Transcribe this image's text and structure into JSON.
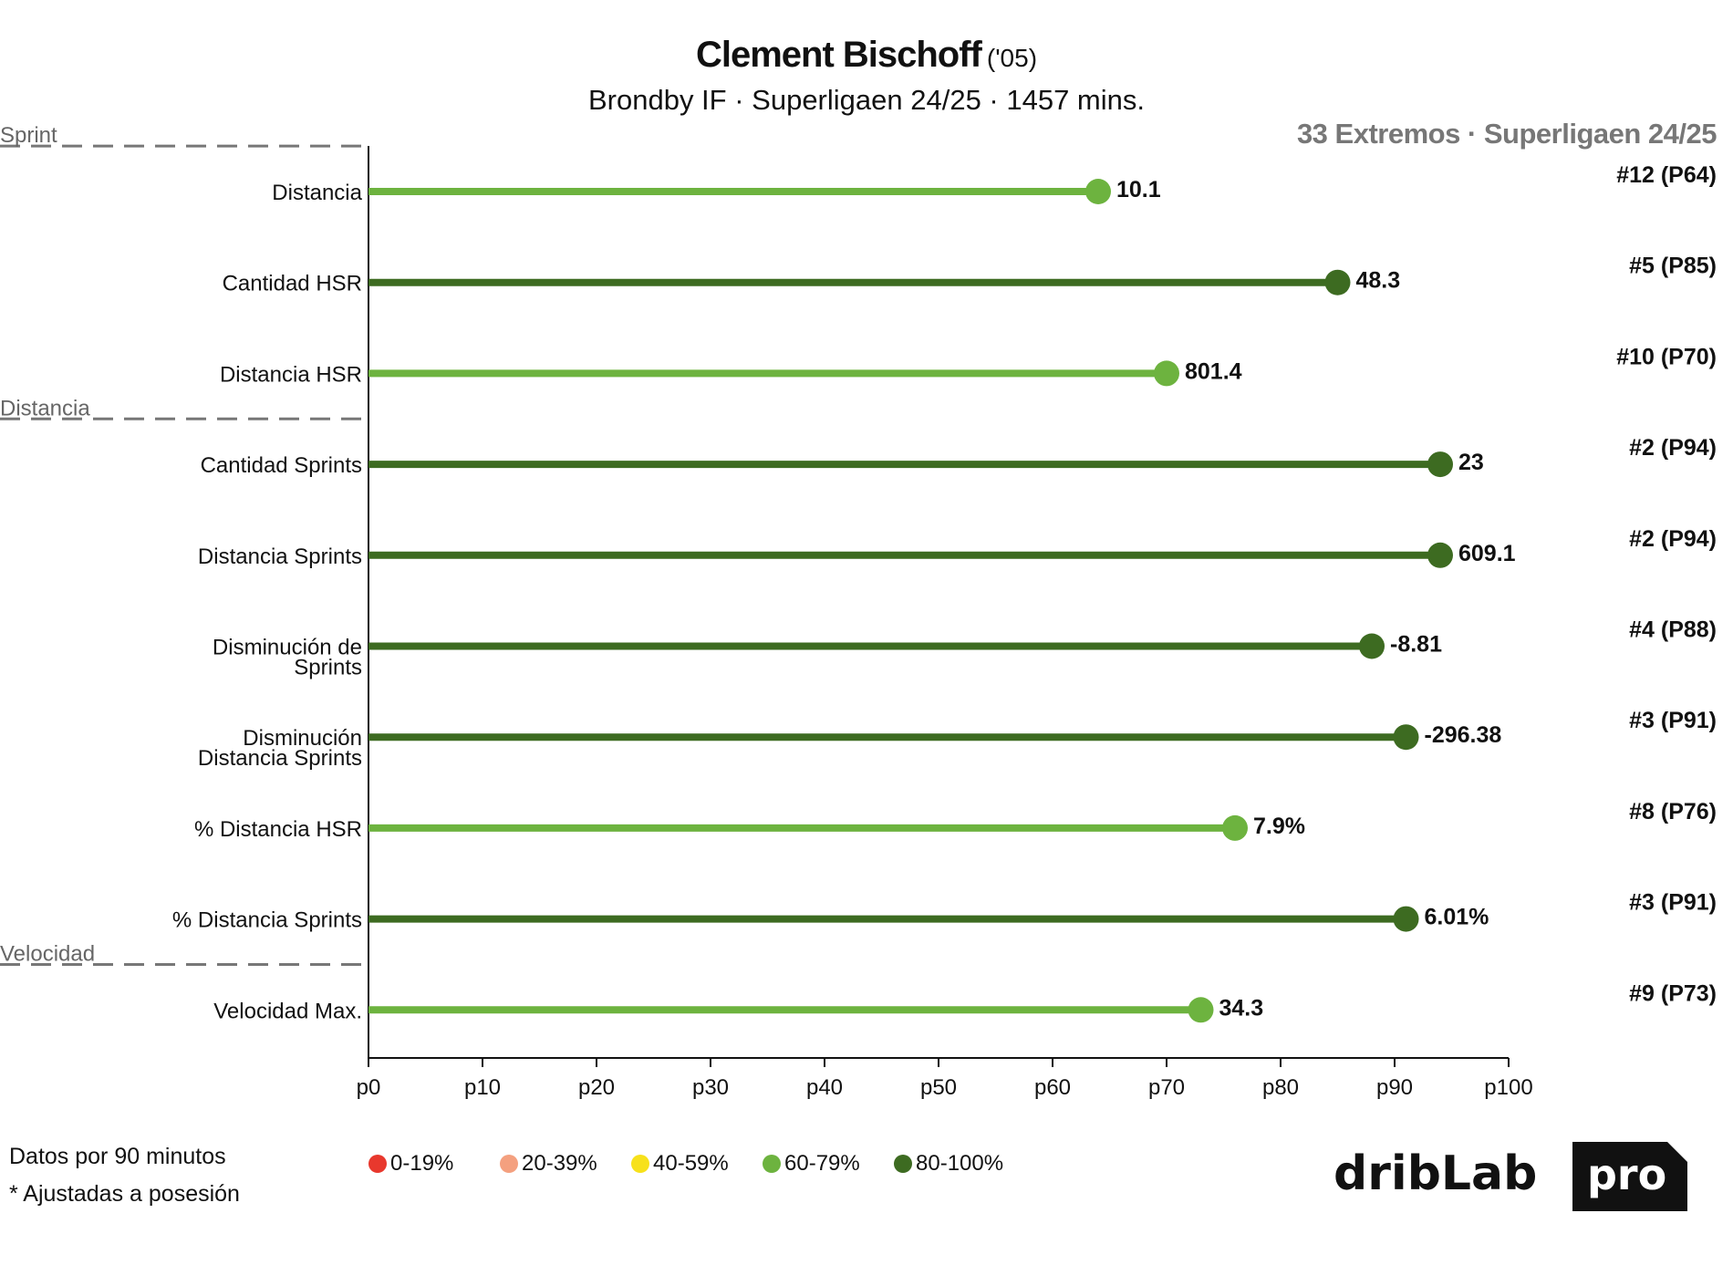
{
  "header": {
    "player_name": "Clement Bischoff",
    "birth_year": "('05)",
    "subtitle": "Brondby IF · Superligaen 24/25 · 1457 mins.",
    "context": "33 Extremos · Superligaen 24/25"
  },
  "chart_data": {
    "type": "bar",
    "style": "lollipop",
    "orientation": "horizontal",
    "xlim": [
      0,
      100
    ],
    "ticks": [
      "p0",
      "p10",
      "p20",
      "p30",
      "p40",
      "p50",
      "p60",
      "p70",
      "p80",
      "p90",
      "p100"
    ],
    "tick_values": [
      0,
      10,
      20,
      30,
      40,
      50,
      60,
      70,
      80,
      90,
      100
    ],
    "grid": false,
    "groups": [
      {
        "label": "Sprint",
        "before_row": 0
      },
      {
        "label": "Distancia",
        "before_row": 3
      },
      {
        "label": "Velocidad",
        "before_row": 9
      }
    ],
    "rows": [
      {
        "label": "Distancia",
        "percentile": 64,
        "value_label": "10.1",
        "rank_label": "#12 (P64)",
        "color": "#6db33f"
      },
      {
        "label": "Cantidad HSR",
        "percentile": 85,
        "value_label": "48.3",
        "rank_label": "#5 (P85)",
        "color": "#3d6b21"
      },
      {
        "label": "Distancia HSR",
        "percentile": 70,
        "value_label": "801.4",
        "rank_label": "#10 (P70)",
        "color": "#6db33f"
      },
      {
        "label": "Cantidad Sprints",
        "percentile": 94,
        "value_label": "23",
        "rank_label": "#2 (P94)",
        "color": "#3d6b21"
      },
      {
        "label": "Distancia Sprints",
        "percentile": 94,
        "value_label": "609.1",
        "rank_label": "#2 (P94)",
        "color": "#3d6b21"
      },
      {
        "label": "Disminución de\nSprints",
        "percentile": 88,
        "value_label": "-8.81",
        "rank_label": "#4 (P88)",
        "color": "#3d6b21"
      },
      {
        "label": "Disminución\nDistancia Sprints",
        "percentile": 91,
        "value_label": "-296.38",
        "rank_label": "#3 (P91)",
        "color": "#3d6b21"
      },
      {
        "label": "% Distancia HSR",
        "percentile": 76,
        "value_label": "7.9%",
        "rank_label": "#8 (P76)",
        "color": "#6db33f"
      },
      {
        "label": "% Distancia Sprints",
        "percentile": 91,
        "value_label": "6.01%",
        "rank_label": "#3 (P91)",
        "color": "#3d6b21"
      },
      {
        "label": "Velocidad Max.",
        "percentile": 73,
        "value_label": "34.3",
        "rank_label": "#9 (P73)",
        "color": "#6db33f"
      }
    ]
  },
  "footer": {
    "note1": "Datos por 90 minutos",
    "note2": "* Ajustadas a posesión"
  },
  "legend": [
    {
      "label": "0-19%",
      "color": "#e8382d"
    },
    {
      "label": "20-39%",
      "color": "#f4a07f"
    },
    {
      "label": "40-59%",
      "color": "#f7e11b"
    },
    {
      "label": "60-79%",
      "color": "#6db33f"
    },
    {
      "label": "80-100%",
      "color": "#3d6b21"
    }
  ],
  "logo": {
    "text_left": "dribLab",
    "text_right": "pro"
  }
}
